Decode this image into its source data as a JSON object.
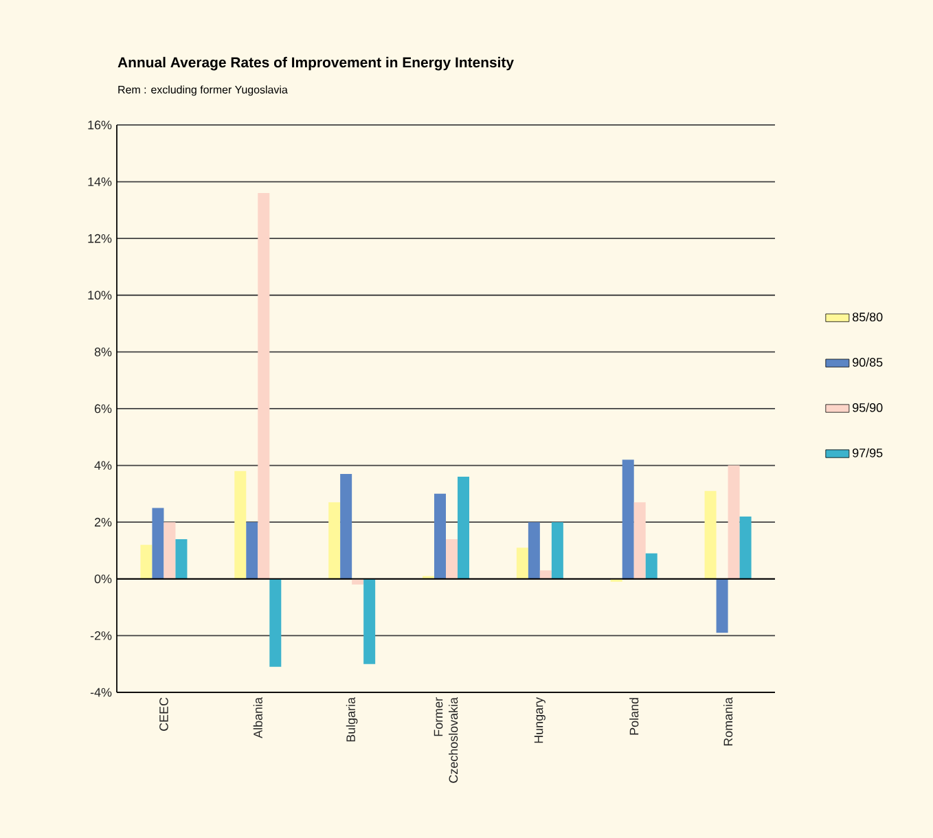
{
  "chart_data": {
    "type": "bar",
    "title": "Annual Average Rates of Improvement in Energy Intensity",
    "subtitle": "Rem : excluding former Yugoslavia",
    "categories": [
      "CEEC",
      "Albania",
      "Bulgaria",
      "Former Czechoslovakia",
      "Hungary",
      "Poland",
      "Romania"
    ],
    "series": [
      {
        "name": "85/80",
        "color": "#fff899",
        "values": [
          1.2,
          3.8,
          2.7,
          0.1,
          1.1,
          -0.1,
          3.1
        ]
      },
      {
        "name": "90/85",
        "color": "#5b85c4",
        "values": [
          2.5,
          2.0,
          3.7,
          3.0,
          2.0,
          4.2,
          -1.9
        ]
      },
      {
        "name": "95/90",
        "color": "#fcd5c8",
        "values": [
          2.0,
          13.6,
          -0.2,
          1.4,
          0.3,
          2.7,
          4.0
        ]
      },
      {
        "name": "97/95",
        "color": "#3cb3cc",
        "values": [
          1.4,
          -3.1,
          -3.0,
          3.6,
          2.0,
          0.9,
          2.2
        ]
      }
    ],
    "ylim": [
      -4,
      16
    ],
    "yticks": [
      {
        "value": -4,
        "label": "-4%"
      },
      {
        "value": -2,
        "label": "-2%"
      },
      {
        "value": 0,
        "label": "0%"
      },
      {
        "value": 2,
        "label": "2%"
      },
      {
        "value": 4,
        "label": "4%"
      },
      {
        "value": 6,
        "label": "6%"
      },
      {
        "value": 8,
        "label": "8%"
      },
      {
        "value": 10,
        "label": "10%"
      },
      {
        "value": 12,
        "label": "12%"
      },
      {
        "value": 14,
        "label": "14%"
      },
      {
        "value": 16,
        "label": "16%"
      }
    ],
    "grid": "y",
    "legend": "right"
  }
}
